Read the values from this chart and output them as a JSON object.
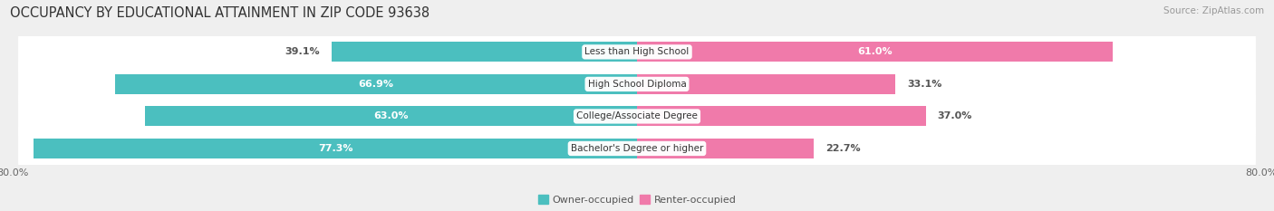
{
  "title": "OCCUPANCY BY EDUCATIONAL ATTAINMENT IN ZIP CODE 93638",
  "source": "Source: ZipAtlas.com",
  "categories": [
    "Less than High School",
    "High School Diploma",
    "College/Associate Degree",
    "Bachelor's Degree or higher"
  ],
  "owner_values": [
    39.1,
    66.9,
    63.0,
    77.3
  ],
  "renter_values": [
    61.0,
    33.1,
    37.0,
    22.7
  ],
  "owner_color": "#4bbfbf",
  "renter_color": "#f07aaa",
  "background_color": "#efefef",
  "bar_bg_color": "#e8e8e8",
  "axis_min": -80.0,
  "axis_max": 80.0,
  "legend_owner": "Owner-occupied",
  "legend_renter": "Renter-occupied",
  "title_fontsize": 10.5,
  "source_fontsize": 7.5,
  "bar_label_fontsize": 8,
  "cat_label_fontsize": 7.5,
  "tick_fontsize": 8
}
